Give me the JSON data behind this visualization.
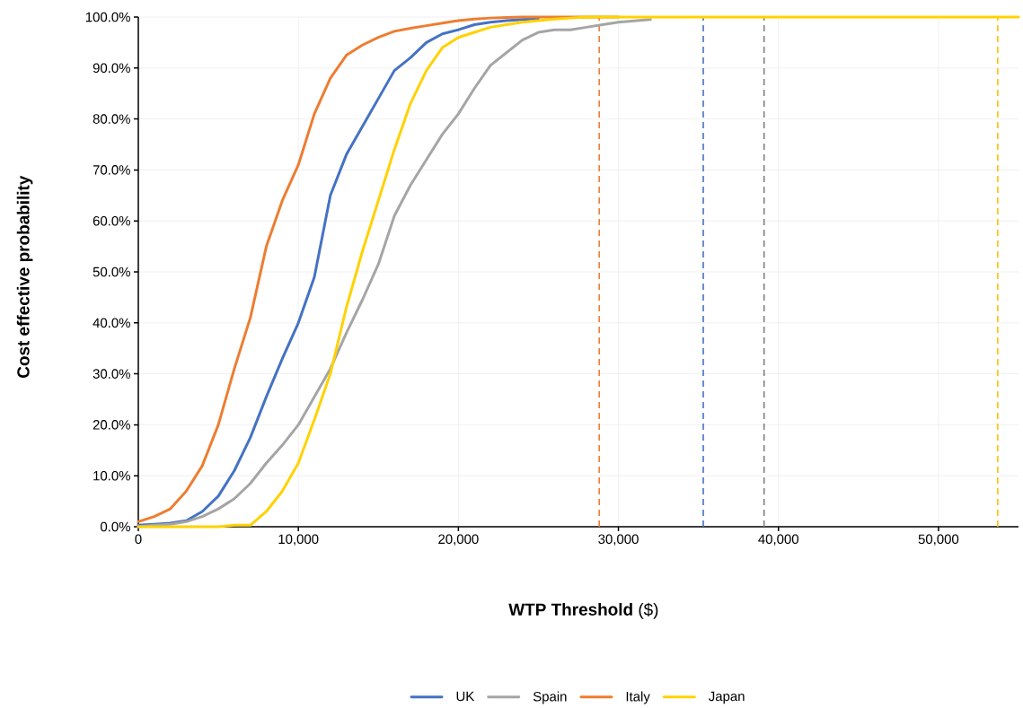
{
  "chart_data": {
    "type": "line",
    "xlabel": "**WTP Threshold** ($)",
    "ylabel": "Cost effective probability",
    "x": [
      0,
      1000,
      2000,
      3000,
      4000,
      5000,
      6000,
      7000,
      8000,
      9000,
      10000,
      11000,
      12000,
      13000,
      14000,
      15000,
      16000,
      17000,
      18000,
      19000,
      20000,
      21000,
      22000,
      23000,
      24000,
      25000,
      26000,
      27000,
      28000,
      29000,
      30000,
      32000,
      35000,
      40000,
      45000,
      50000,
      55000
    ],
    "series": [
      {
        "name": "UK",
        "color": "#4472c4",
        "values": [
          0.3,
          0.5,
          0.7,
          1.2,
          3,
          6,
          11,
          17.5,
          25.5,
          33,
          40,
          49,
          65,
          73,
          78.5,
          84,
          89.5,
          92,
          95,
          96.7,
          97.5,
          98.5,
          99,
          99.3,
          99.5,
          99.7,
          null,
          null,
          null,
          null,
          null,
          null,
          null,
          null,
          null,
          null,
          null
        ]
      },
      {
        "name": "Spain",
        "color": "#a5a5a5",
        "values": [
          0,
          0.3,
          0.5,
          1,
          2,
          3.5,
          5.5,
          8.5,
          12.5,
          16,
          20,
          25.5,
          31,
          38,
          44.5,
          51.5,
          61,
          67,
          72,
          77,
          81,
          86,
          90.5,
          93,
          95.5,
          97,
          97.5,
          97.5,
          98,
          98.5,
          99,
          99.5,
          null,
          null,
          null,
          null,
          null
        ]
      },
      {
        "name": "Italy",
        "color": "#ed7d31",
        "values": [
          1,
          2,
          3.5,
          7,
          12,
          20,
          31,
          41,
          55,
          64,
          71,
          81,
          88,
          92.5,
          94.5,
          96,
          97.2,
          97.8,
          98.3,
          98.8,
          99.3,
          99.6,
          99.8,
          99.9,
          100,
          100,
          100,
          100,
          100,
          100,
          100,
          null,
          null,
          null,
          null,
          null,
          null
        ]
      },
      {
        "name": "Japan",
        "color": "#ffd200",
        "values": [
          0,
          0,
          0,
          0,
          0,
          0,
          0.3,
          0.3,
          3,
          7,
          12.5,
          21,
          30,
          43,
          54,
          64,
          74,
          83,
          89.5,
          94,
          96,
          97,
          98,
          98.5,
          99,
          99.3,
          99.6,
          99.8,
          100,
          100,
          100,
          100,
          100,
          100,
          100,
          100,
          100
        ]
      }
    ],
    "xlim": [
      0,
      55000
    ],
    "ylim": [
      0,
      100
    ],
    "xticks": [
      0,
      {
        "value": 10000,
        "label": "10,000"
      },
      {
        "value": 20000,
        "label": "20,000"
      },
      {
        "value": 30000,
        "label": "30,000"
      },
      {
        "value": 40000,
        "label": "40,000"
      },
      {
        "value": 50000,
        "label": "50,000"
      }
    ],
    "yticks": [
      {
        "value": 0,
        "label": "0.0%"
      },
      {
        "value": 10,
        "label": "10.0%"
      },
      {
        "value": 20,
        "label": "20.0%"
      },
      {
        "value": 30,
        "label": "30.0%"
      },
      {
        "value": 40,
        "label": "40.0%"
      },
      {
        "value": 50,
        "label": "50.0%"
      },
      {
        "value": 60,
        "label": "60.0%"
      },
      {
        "value": 70,
        "label": "70.0%"
      },
      {
        "value": 80,
        "label": "80.0%"
      },
      {
        "value": 90,
        "label": "90.0%"
      },
      {
        "value": 100,
        "label": "100.0%"
      }
    ],
    "ref_lines": [
      {
        "axis": "x",
        "value": 28800,
        "color": "#ed7d31",
        "line_style": "dashed"
      },
      {
        "axis": "x",
        "value": 35300,
        "color": "#4472c4",
        "line_style": "dashed"
      },
      {
        "axis": "x",
        "value": 39100,
        "color": "#7f7f7f",
        "line_style": "dashed"
      },
      {
        "axis": "x",
        "value": 53700,
        "color": "#ffc000",
        "line_style": "dashed"
      }
    ],
    "grid": true,
    "legend": "bottom",
    "marker": "none",
    "line_style": "solid"
  }
}
